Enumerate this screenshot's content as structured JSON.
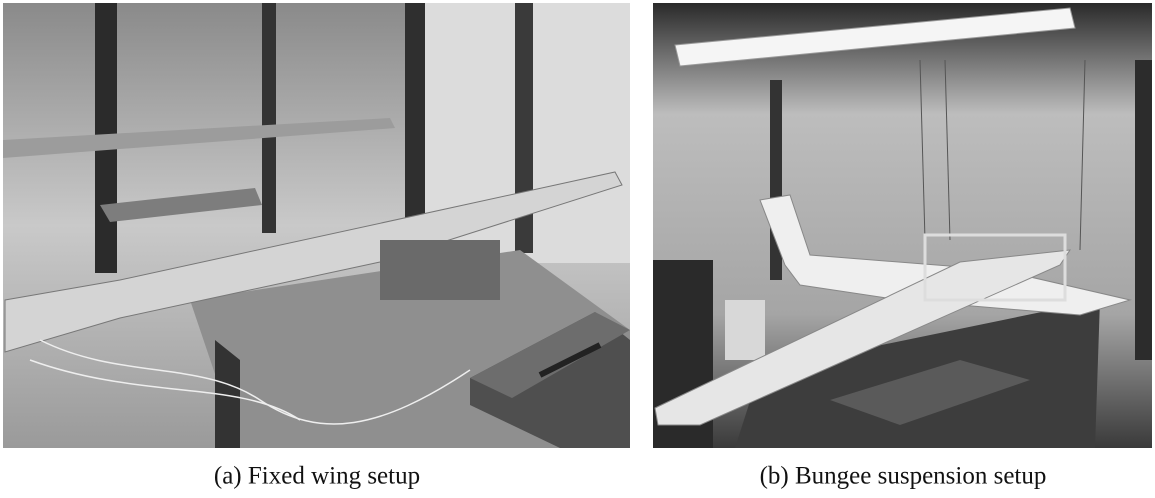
{
  "figure": {
    "panels": [
      {
        "caption": "(a) Fixed wing setup"
      },
      {
        "caption": "(b) Bungee suspension setup"
      }
    ]
  }
}
